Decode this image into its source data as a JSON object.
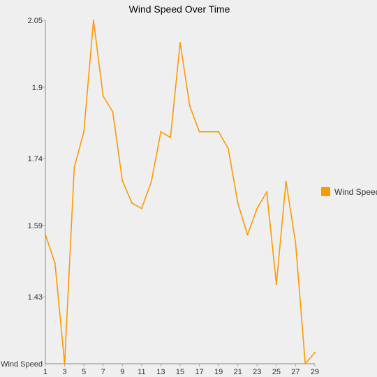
{
  "chart_data": {
    "type": "line",
    "title": "Wind Speed Over Time",
    "y_min_label": "Wind Speed",
    "legend": {
      "label": "Wind Speed",
      "placement": "right"
    },
    "colors": {
      "series": "#ff9900",
      "axis": "#888888",
      "tick": "#aaaaaa",
      "background": "#efefef"
    },
    "x": [
      1,
      2,
      3,
      4,
      5,
      6,
      7,
      8,
      9,
      10,
      11,
      12,
      13,
      14,
      15,
      16,
      17,
      18,
      19,
      20,
      21,
      22,
      23,
      24,
      25,
      26,
      27,
      28,
      29
    ],
    "x_tick_labels": [
      "1",
      "3",
      "5",
      "7",
      "9",
      "11",
      "13",
      "15",
      "17",
      "19",
      "21",
      "23",
      "25",
      "27",
      "29"
    ],
    "y_tick_values": [
      1.43,
      1.59,
      1.74,
      1.9,
      2.05
    ],
    "y_tick_labels": [
      "1.43",
      "1.59",
      "1.74",
      "1.9",
      "2.05"
    ],
    "ylim": [
      1.28,
      2.05
    ],
    "xlim": [
      1,
      29
    ],
    "series": [
      {
        "name": "Wind Speed",
        "values": [
          1.57,
          1.505,
          1.28,
          1.72,
          1.8,
          2.05,
          1.88,
          1.845,
          1.69,
          1.64,
          1.628,
          1.687,
          1.8,
          1.787,
          2.0,
          1.858,
          1.8,
          1.8,
          1.8,
          1.762,
          1.64,
          1.569,
          1.628,
          1.665,
          1.458,
          1.689,
          1.55,
          1.28,
          1.305
        ]
      }
    ],
    "grid": false
  }
}
